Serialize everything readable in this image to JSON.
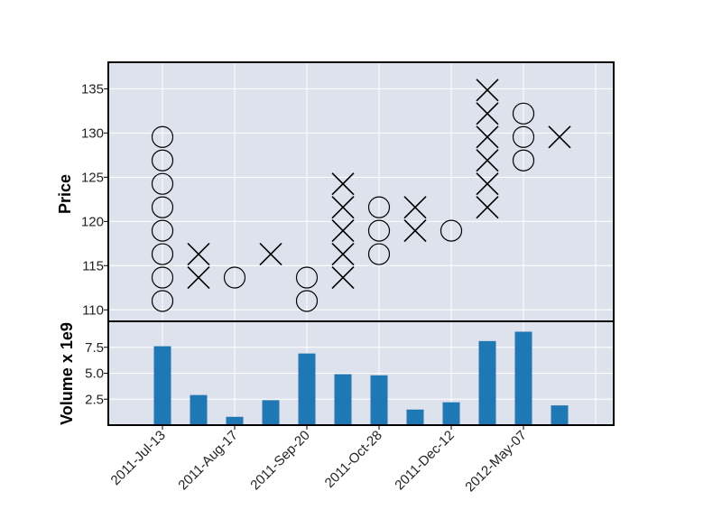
{
  "chart_data": {
    "type": "point-and-figure",
    "price_panel": {
      "ylabel": "Price",
      "yticks": [
        110,
        115,
        120,
        125,
        130,
        135
      ],
      "ylim": [
        108.7,
        138.0
      ],
      "box_size": 2.65,
      "columns": [
        {
          "type": "O",
          "boxes": [
            111.0,
            113.65,
            116.3,
            118.95,
            121.6,
            124.25,
            126.9,
            129.55
          ]
        },
        {
          "type": "X",
          "boxes": [
            113.65,
            116.3
          ]
        },
        {
          "type": "O",
          "boxes": [
            113.65
          ]
        },
        {
          "type": "X",
          "boxes": [
            116.3
          ]
        },
        {
          "type": "O",
          "boxes": [
            111.0,
            113.65
          ]
        },
        {
          "type": "X",
          "boxes": [
            113.65,
            116.3,
            118.95,
            121.6,
            124.25
          ]
        },
        {
          "type": "O",
          "boxes": [
            116.3,
            118.95,
            121.6
          ]
        },
        {
          "type": "X",
          "boxes": [
            118.95,
            121.6
          ]
        },
        {
          "type": "O",
          "boxes": [
            118.95
          ]
        },
        {
          "type": "X",
          "boxes": [
            121.6,
            124.25,
            126.9,
            129.55,
            132.2,
            134.85
          ]
        },
        {
          "type": "O",
          "boxes": [
            126.9,
            129.55,
            132.2
          ]
        },
        {
          "type": "X",
          "boxes": [
            129.55
          ]
        }
      ]
    },
    "volume_panel": {
      "ylabel": "Volume x 1e9",
      "yticks": [
        2.5,
        5.0,
        7.5
      ],
      "ytick_labels": [
        "2.5",
        "5.0",
        "7.5"
      ],
      "ylim": [
        0,
        10.0
      ],
      "values": [
        7.6,
        2.9,
        0.8,
        2.4,
        6.9,
        4.9,
        4.8,
        1.5,
        2.2,
        8.1,
        9.0,
        1.9
      ]
    },
    "xtick_labels": [
      "2011-Jul-13",
      "2011-Aug-17",
      "2011-Sep-20",
      "2011-Oct-28",
      "2011-Dec-12",
      "2012-May-07"
    ],
    "xtick_columns": [
      0,
      2,
      4,
      6,
      8,
      10
    ],
    "x_column_range": [
      -1.5,
      12.5
    ],
    "grid": true,
    "colors": {
      "panel_bg": "#dde2ed",
      "grid": "#ffffff",
      "bar": "#1f77b4",
      "marker": "#000000"
    }
  }
}
